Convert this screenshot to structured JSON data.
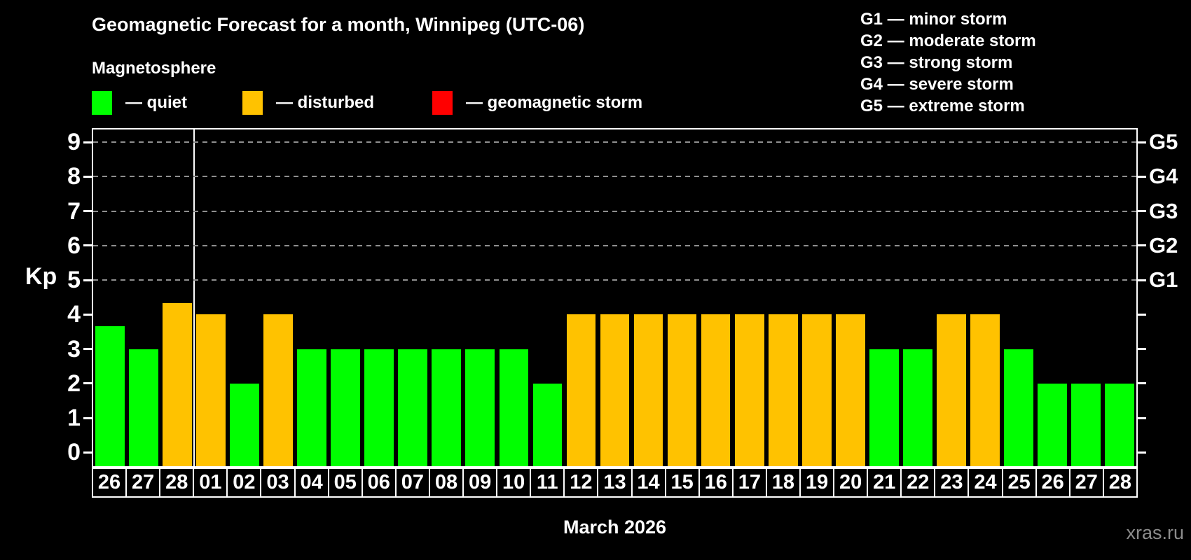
{
  "header": {
    "title": "Geomagnetic Forecast for a month, Winnipeg (UTC-06)",
    "subtitle": "Magnetosphere"
  },
  "legend": {
    "items": [
      {
        "key": "quiet",
        "label": "— quiet",
        "color": "#00ff00"
      },
      {
        "key": "disturbed",
        "label": "— disturbed",
        "color": "#ffc200"
      },
      {
        "key": "storm",
        "label": "— geomagnetic storm",
        "color": "#ff0000"
      }
    ]
  },
  "g_legend": {
    "items": [
      "G1 — minor storm",
      "G2 — moderate storm",
      "G3 — strong storm",
      "G4 — severe storm",
      "G5 — extreme storm"
    ]
  },
  "footer": {
    "watermark": "xras.ru"
  },
  "chart_data": {
    "type": "bar",
    "title": "Geomagnetic Forecast for a month, Winnipeg (UTC-06)",
    "xlabel": "March 2026",
    "ylabel": "Kp",
    "ylim": [
      -0.4,
      9.37
    ],
    "yticks": [
      0,
      1,
      2,
      3,
      4,
      5,
      6,
      7,
      8,
      9
    ],
    "gridlines_at": [
      5,
      6,
      7,
      8,
      9
    ],
    "grid": "dashed horizontal at Kp 5-9 only",
    "legend_position": "top-left and top-right",
    "right_axis": [
      {
        "kp": 5,
        "label": "G1"
      },
      {
        "kp": 6,
        "label": "G2"
      },
      {
        "kp": 7,
        "label": "G3"
      },
      {
        "kp": 8,
        "label": "G4"
      },
      {
        "kp": 9,
        "label": "G5"
      }
    ],
    "month_boundary_after_index": 2,
    "colors": {
      "quiet": "#00ff00",
      "disturbed": "#ffc200",
      "storm": "#ff0000"
    },
    "categories": [
      "26",
      "27",
      "28",
      "01",
      "02",
      "03",
      "04",
      "05",
      "06",
      "07",
      "08",
      "09",
      "10",
      "11",
      "12",
      "13",
      "14",
      "15",
      "16",
      "17",
      "18",
      "19",
      "20",
      "21",
      "22",
      "23",
      "24",
      "25",
      "26",
      "27",
      "28"
    ],
    "series": [
      {
        "name": "Kp forecast",
        "values": [
          3.67,
          3,
          4.33,
          4,
          2,
          4,
          3,
          3,
          3,
          3,
          3,
          3,
          3,
          2,
          4,
          4,
          4,
          4,
          4,
          4,
          4,
          4,
          4,
          3,
          3,
          4,
          4,
          3,
          2,
          2,
          2
        ]
      }
    ],
    "statuses": [
      "quiet",
      "quiet",
      "disturbed",
      "disturbed",
      "quiet",
      "disturbed",
      "quiet",
      "quiet",
      "quiet",
      "quiet",
      "quiet",
      "quiet",
      "quiet",
      "quiet",
      "disturbed",
      "disturbed",
      "disturbed",
      "disturbed",
      "disturbed",
      "disturbed",
      "disturbed",
      "disturbed",
      "disturbed",
      "quiet",
      "quiet",
      "disturbed",
      "disturbed",
      "quiet",
      "quiet",
      "quiet",
      "quiet"
    ]
  }
}
